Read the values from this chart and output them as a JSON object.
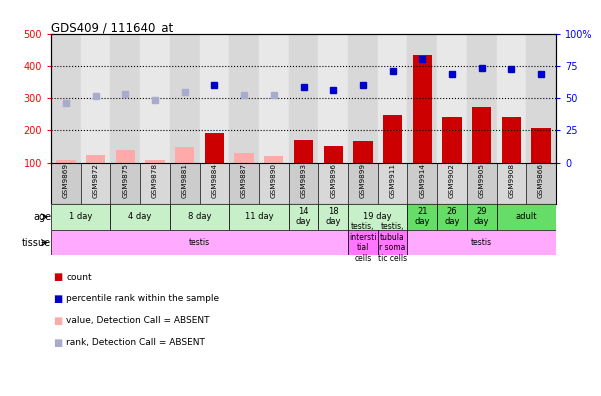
{
  "title": "GDS409 / 111640_at",
  "samples": [
    "GSM9869",
    "GSM9872",
    "GSM9875",
    "GSM9878",
    "GSM9881",
    "GSM9884",
    "GSM9887",
    "GSM9890",
    "GSM9893",
    "GSM9896",
    "GSM9899",
    "GSM9911",
    "GSM9914",
    "GSM9902",
    "GSM9905",
    "GSM9908",
    "GSM9866"
  ],
  "count_values": [
    null,
    null,
    null,
    null,
    null,
    193,
    null,
    null,
    170,
    150,
    168,
    248,
    435,
    240,
    272,
    240,
    207
  ],
  "count_absent": [
    108,
    125,
    138,
    108,
    148,
    null,
    130,
    120,
    null,
    null,
    null,
    null,
    null,
    null,
    null,
    null,
    null
  ],
  "rank_values": [
    null,
    null,
    null,
    null,
    null,
    340,
    null,
    null,
    335,
    325,
    340,
    385,
    420,
    375,
    395,
    390,
    375
  ],
  "rank_absent": [
    285,
    308,
    312,
    295,
    320,
    null,
    310,
    310,
    null,
    null,
    null,
    null,
    null,
    null,
    null,
    null,
    null
  ],
  "ylim_left": [
    100,
    500
  ],
  "ylim_right": [
    0,
    100
  ],
  "yticks_left": [
    100,
    200,
    300,
    400,
    500
  ],
  "yticks_right": [
    0,
    25,
    50,
    75,
    100
  ],
  "age_groups": [
    {
      "label": "1 day",
      "start": 0,
      "end": 2,
      "color": "#c8f0c8"
    },
    {
      "label": "4 day",
      "start": 2,
      "end": 4,
      "color": "#c8f0c8"
    },
    {
      "label": "8 day",
      "start": 4,
      "end": 6,
      "color": "#c8f0c8"
    },
    {
      "label": "11 day",
      "start": 6,
      "end": 8,
      "color": "#c8f0c8"
    },
    {
      "label": "14\nday",
      "start": 8,
      "end": 9,
      "color": "#c8f0c8"
    },
    {
      "label": "18\nday",
      "start": 9,
      "end": 10,
      "color": "#c8f0c8"
    },
    {
      "label": "19 day",
      "start": 10,
      "end": 12,
      "color": "#c8f0c8"
    },
    {
      "label": "21\nday",
      "start": 12,
      "end": 13,
      "color": "#66dd66"
    },
    {
      "label": "26\nday",
      "start": 13,
      "end": 14,
      "color": "#66dd66"
    },
    {
      "label": "29\nday",
      "start": 14,
      "end": 15,
      "color": "#66dd66"
    },
    {
      "label": "adult",
      "start": 15,
      "end": 17,
      "color": "#66dd66"
    }
  ],
  "tissue_groups": [
    {
      "label": "testis",
      "start": 0,
      "end": 10,
      "color": "#ffaaff"
    },
    {
      "label": "testis,\nintersti\ntial\ncells",
      "start": 10,
      "end": 11,
      "color": "#ff77ff"
    },
    {
      "label": "testis,\ntubula\nr soma\ntic cells",
      "start": 11,
      "end": 12,
      "color": "#ff77ff"
    },
    {
      "label": "testis",
      "start": 12,
      "end": 17,
      "color": "#ffaaff"
    }
  ],
  "bar_color": "#cc0000",
  "absent_bar_color": "#ffaaaa",
  "rank_color": "#0000cc",
  "rank_absent_color": "#aaaacc",
  "bg_color": "#ffffff",
  "label_bg": "#cccccc"
}
